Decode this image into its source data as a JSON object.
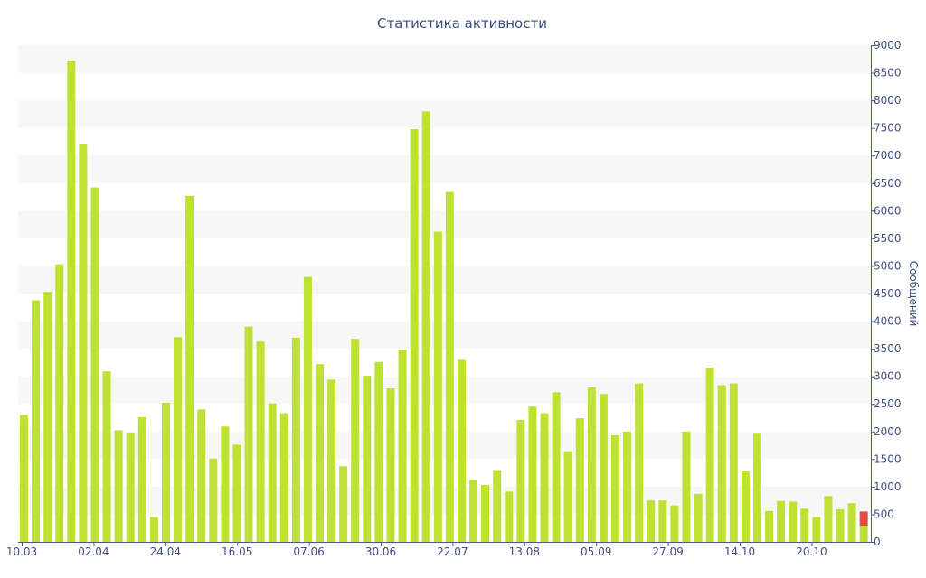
{
  "chart_data": {
    "type": "bar",
    "title": "Статистика активности",
    "ylabel": "Сообщений",
    "ylim": [
      0,
      9000
    ],
    "yticks": [
      0,
      500,
      1000,
      1500,
      2000,
      2500,
      3000,
      3500,
      4000,
      4500,
      5000,
      5500,
      6000,
      6500,
      7000,
      7500,
      8000,
      8500,
      9000
    ],
    "x_tick_labels": [
      "10.03",
      "02.04",
      "24.04",
      "16.05",
      "07.06",
      "30.06",
      "22.07",
      "13.08",
      "05.09",
      "27.09",
      "14.10",
      "20.10"
    ],
    "grid": "alternating horizontal bands",
    "colors": {
      "bar": "#bde232",
      "highlight": "#e0503c",
      "text": "#3e4e83",
      "band": "#f7f7f7",
      "axis": "#4a5a8a"
    },
    "values": [
      2300,
      4380,
      4530,
      5030,
      8720,
      7200,
      6420,
      3090,
      2020,
      1970,
      2260,
      450,
      2520,
      3710,
      6270,
      2400,
      1510,
      2090,
      1760,
      3900,
      3630,
      2510,
      2330,
      3700,
      4800,
      3220,
      2940,
      1370,
      3680,
      3010,
      3260,
      2780,
      3480,
      7480,
      7800,
      5620,
      6340,
      3300,
      1120,
      1030,
      1300,
      910,
      2210,
      2450,
      2330,
      2710,
      1640,
      2240,
      2800,
      2680,
      1930,
      2000,
      2870,
      750,
      750,
      660,
      2000,
      870,
      3160,
      2840,
      2870,
      1290,
      1960,
      560,
      740,
      730,
      600,
      450,
      830,
      590,
      700,
      550
    ],
    "highlight_index": 71,
    "highlight_partial": 290
  }
}
